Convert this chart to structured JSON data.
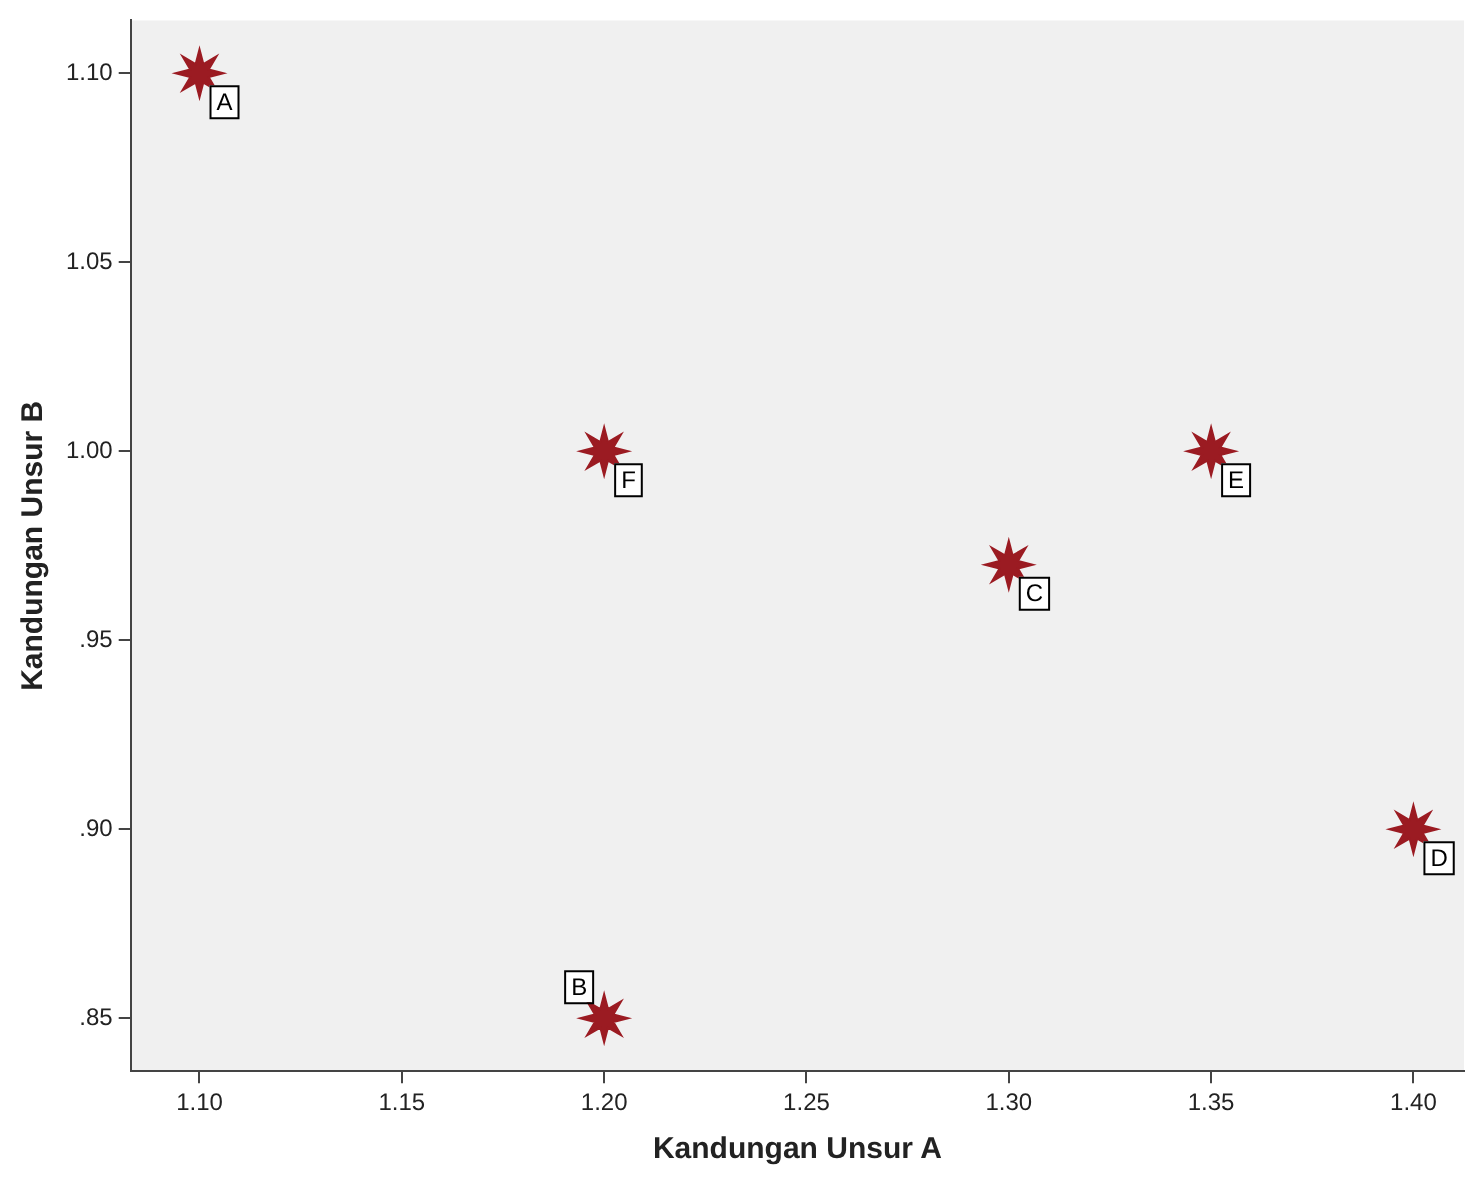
{
  "chart_data": {
    "type": "scatter",
    "xlabel": "Kandungan Unsur A",
    "ylabel": "Kandungan Unsur B",
    "x": [
      1.1,
      1.2,
      1.3,
      1.4,
      1.35,
      1.2
    ],
    "series": [
      {
        "color": "#9b1b22",
        "values": [
          1.1,
          0.85,
          0.97,
          0.9,
          1.0,
          1.0
        ]
      }
    ],
    "marker": "star",
    "grid": false,
    "legend": false,
    "xlim": [
      1.083,
      1.4125
    ],
    "ylim": [
      0.836,
      1.114
    ],
    "xticks": [
      {
        "value": 1.1,
        "label": "1.10"
      },
      {
        "value": 1.15,
        "label": "1.15"
      },
      {
        "value": 1.2,
        "label": "1.20"
      },
      {
        "value": 1.25,
        "label": "1.25"
      },
      {
        "value": 1.3,
        "label": "1.30"
      },
      {
        "value": 1.35,
        "label": "1.35"
      },
      {
        "value": 1.4,
        "label": "1.40"
      }
    ],
    "yticks": [
      {
        "value": 0.85,
        "label": ".85"
      },
      {
        "value": 0.9,
        "label": ".90"
      },
      {
        "value": 0.95,
        "label": ".95"
      },
      {
        "value": 1.0,
        "label": "1.00"
      },
      {
        "value": 1.05,
        "label": "1.05"
      },
      {
        "value": 1.1,
        "label": "1.10"
      }
    ],
    "annotations": [
      {
        "text": "A",
        "x": 1.1,
        "y": 1.1
      },
      {
        "text": "B",
        "x": 1.2,
        "y": 0.85
      },
      {
        "text": "C",
        "x": 1.3,
        "y": 0.97
      },
      {
        "text": "D",
        "x": 1.4,
        "y": 0.9
      },
      {
        "text": "E",
        "x": 1.35,
        "y": 1.0
      },
      {
        "text": "F",
        "x": 1.2,
        "y": 1.0
      }
    ]
  }
}
